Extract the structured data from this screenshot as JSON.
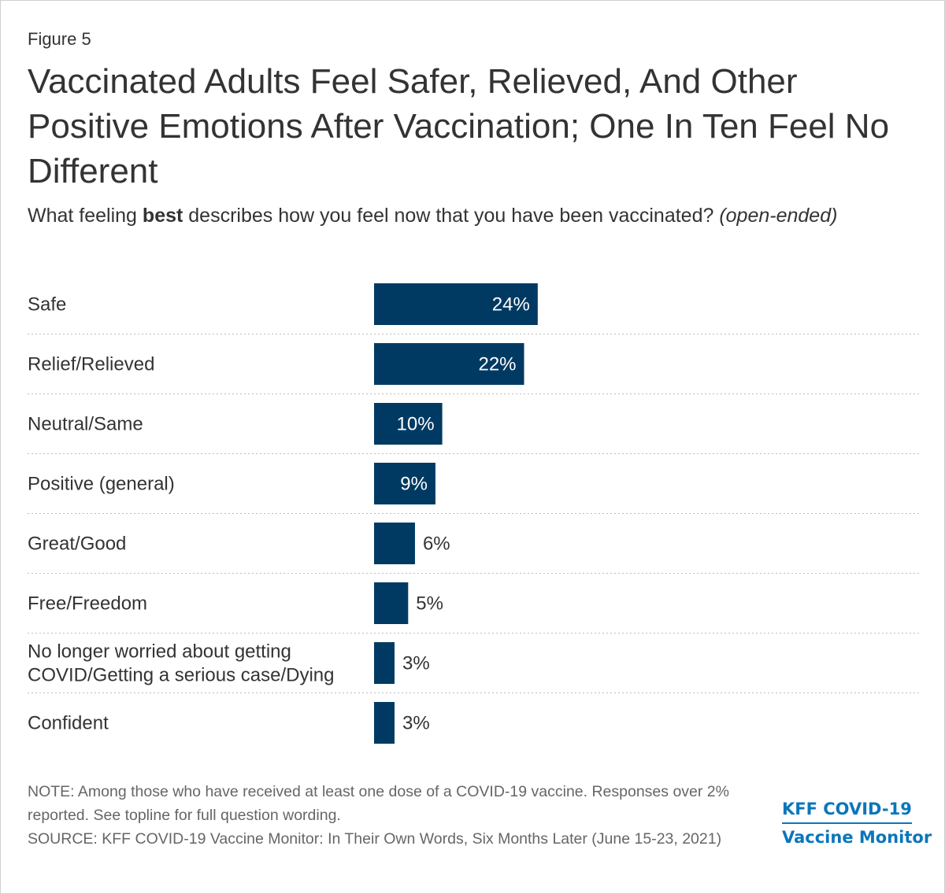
{
  "figure_label": "Figure 5",
  "title": "Vaccinated Adults Feel Safer, Relieved, And Other Positive Emotions After Vaccination; One In Ten Feel No Different",
  "subtitle": {
    "part1": "What feeling ",
    "bold": "best",
    "part2": " describes how you feel now that you have been vaccinated? ",
    "italic": "(open-ended)"
  },
  "chart_data": {
    "type": "bar",
    "orientation": "horizontal",
    "categories": [
      "Safe",
      "Relief/Relieved",
      "Neutral/Same",
      "Positive (general)",
      "Great/Good",
      "Free/Freedom",
      "No longer worried about getting COVID/Getting a serious case/Dying",
      "Confident"
    ],
    "values": [
      24,
      22,
      10,
      9,
      6,
      5,
      3,
      3
    ],
    "value_labels": [
      "24%",
      "22%",
      "10%",
      "9%",
      "6%",
      "5%",
      "3%",
      "3%"
    ],
    "bar_color": "#003a63",
    "xlim": [
      0,
      100
    ],
    "grid": false,
    "legend": "none"
  },
  "note": "NOTE: Among those who have received at least one dose of a COVID-19 vaccine. Responses over 2% reported. See topline for full question wording.",
  "source": "SOURCE: KFF COVID-19 Vaccine Monitor: In Their Own Words, Six Months Later (June 15-23, 2021)",
  "logo": {
    "line1": "KFF COVID-19",
    "line2": "Vaccine Monitor",
    "color": "#0a76bb"
  }
}
